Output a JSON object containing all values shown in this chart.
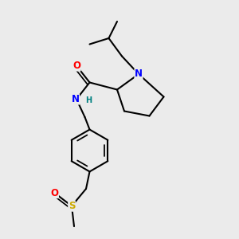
{
  "bg_color": "#ebebeb",
  "atom_colors": {
    "N": "#0000ff",
    "O": "#ff0000",
    "S": "#ccaa00",
    "C": "#000000",
    "H": "#008080"
  },
  "bond_color": "#000000",
  "bond_width": 1.5,
  "font_size_atom": 8.5,
  "font_size_H": 7.0
}
